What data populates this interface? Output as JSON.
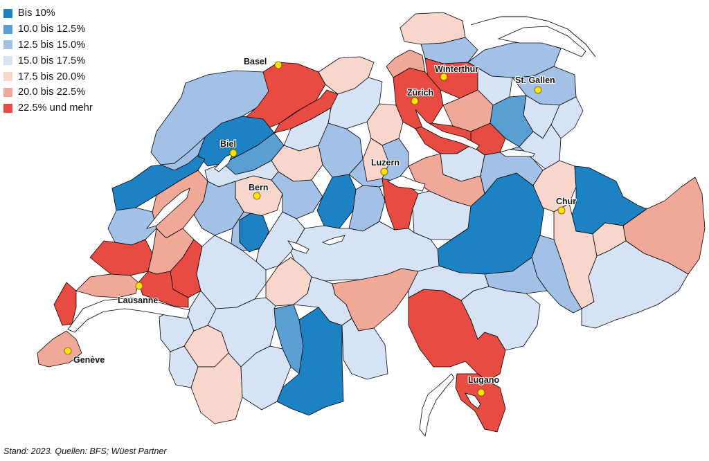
{
  "colors": {
    "c1": "#1c82c4",
    "c2": "#5a9fd4",
    "c3": "#a3c1e6",
    "c4": "#d6e3f4",
    "c5": "#f8d6cc",
    "c6": "#f0a898",
    "c7": "#e84b42",
    "lake": "#ffffff",
    "city_dot": "#ffe200"
  },
  "legend": [
    {
      "label": "Bis 10%",
      "color": "#1c82c4"
    },
    {
      "label": "10.0 bis 12.5%",
      "color": "#5a9fd4"
    },
    {
      "label": "12.5 bis 15.0%",
      "color": "#a3c1e6"
    },
    {
      "label": "15.0 bis 17.5%",
      "color": "#d6e3f4"
    },
    {
      "label": "17.5 bis 20.0%",
      "color": "#f8d6cc"
    },
    {
      "label": "20.0 bis 22.5%",
      "color": "#f0a898"
    },
    {
      "label": "22.5% und mehr",
      "color": "#e84b42"
    }
  ],
  "cities": [
    {
      "name": "Basel"
    },
    {
      "name": "Winterthur"
    },
    {
      "name": "St. Gallen"
    },
    {
      "name": "Zürich"
    },
    {
      "name": "Biel"
    },
    {
      "name": "Luzern"
    },
    {
      "name": "Bern"
    },
    {
      "name": "Chur"
    },
    {
      "name": "Lausanne"
    },
    {
      "name": "Genève"
    },
    {
      "name": "Lugano"
    }
  ],
  "source_note": "Stand: 2023. Quellen: BFS; Wüest Partner"
}
